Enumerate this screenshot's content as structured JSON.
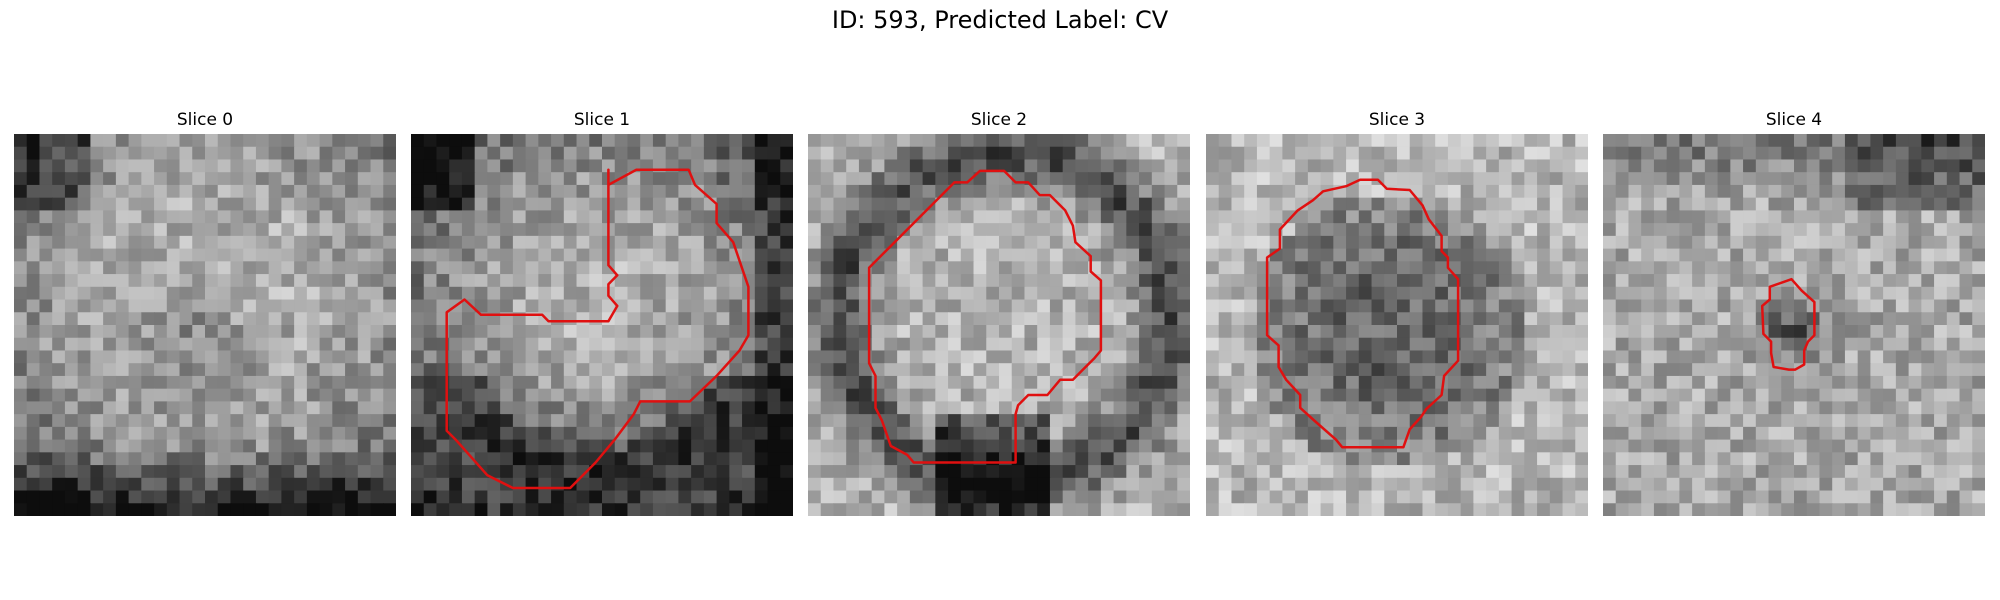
{
  "figure": {
    "title": "ID: 593, Predicted Label: CV",
    "contour_color": "#e01010"
  },
  "slices": [
    {
      "title": "Slice 0",
      "has_contour": false
    },
    {
      "title": "Slice 1",
      "has_contour": true
    },
    {
      "title": "Slice 2",
      "has_contour": true
    },
    {
      "title": "Slice 3",
      "has_contour": true
    },
    {
      "title": "Slice 4",
      "has_contour": true
    }
  ]
}
